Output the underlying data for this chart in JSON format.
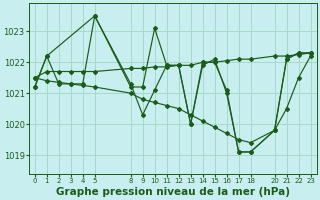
{
  "background_color": "#c8eef0",
  "grid_color": "#a8d8c8",
  "line_color": "#1a5c1a",
  "marker_color": "#1a5c1a",
  "title": "Graphe pression niveau de la mer (hPa)",
  "title_fontsize": 7.5,
  "tick_color": "#1a5c1a",
  "xlim": [
    -0.5,
    23.5
  ],
  "ylim": [
    1018.4,
    1023.9
  ],
  "yticks": [
    1019,
    1020,
    1021,
    1022,
    1023
  ],
  "xtick_positions": [
    0,
    1,
    2,
    3,
    4,
    5,
    8,
    9,
    10,
    11,
    12,
    13,
    14,
    15,
    16,
    17,
    18,
    20,
    21,
    22,
    23
  ],
  "xtick_labels": [
    "0",
    "1",
    "2",
    "3",
    "4",
    "5",
    "8",
    "9",
    "10",
    "11",
    "12",
    "13",
    "14",
    "15",
    "16",
    "17",
    "18",
    "20",
    "21",
    "22",
    "23"
  ],
  "series": [
    {
      "x": [
        0,
        1,
        2,
        3,
        4,
        5,
        8,
        9,
        10,
        11,
        12,
        13,
        14,
        15,
        16,
        17,
        18,
        20,
        21,
        22,
        23
      ],
      "y": [
        1021.2,
        1022.2,
        1021.3,
        1021.3,
        1021.3,
        1023.5,
        1021.2,
        1021.2,
        1023.1,
        1021.9,
        1021.9,
        1020.0,
        1021.9,
        1022.1,
        1021.0,
        1019.1,
        1019.1,
        1019.8,
        1022.1,
        1022.3,
        1022.3
      ]
    },
    {
      "x": [
        0,
        1,
        2,
        3,
        4,
        5,
        8,
        9,
        10,
        11,
        12,
        13,
        14,
        15,
        16,
        17,
        18,
        20,
        21,
        22,
        23
      ],
      "y": [
        1021.5,
        1021.7,
        1021.7,
        1021.7,
        1021.7,
        1021.7,
        1021.8,
        1021.8,
        1021.85,
        1021.85,
        1021.9,
        1021.9,
        1022.0,
        1022.0,
        1022.05,
        1022.1,
        1022.1,
        1022.2,
        1022.2,
        1022.25,
        1022.3
      ]
    },
    {
      "x": [
        0,
        1,
        2,
        3,
        4,
        5,
        8,
        9,
        10,
        11,
        12,
        13,
        14,
        15,
        16,
        17,
        18,
        20,
        21,
        22,
        23
      ],
      "y": [
        1021.5,
        1021.4,
        1021.35,
        1021.3,
        1021.25,
        1021.2,
        1021.0,
        1020.8,
        1020.7,
        1020.6,
        1020.5,
        1020.3,
        1020.1,
        1019.9,
        1019.7,
        1019.5,
        1019.4,
        1019.8,
        1020.5,
        1021.5,
        1022.2
      ]
    },
    {
      "x": [
        0,
        1,
        5,
        8,
        9,
        10,
        11,
        12,
        13,
        14,
        15,
        16,
        17,
        18,
        20,
        21,
        22,
        23
      ],
      "y": [
        1021.2,
        1022.2,
        1023.5,
        1021.3,
        1020.3,
        1021.1,
        1021.9,
        1021.9,
        1020.0,
        1022.0,
        1022.0,
        1021.1,
        1019.1,
        1019.1,
        1019.8,
        1022.1,
        1022.3,
        1022.3
      ]
    }
  ]
}
